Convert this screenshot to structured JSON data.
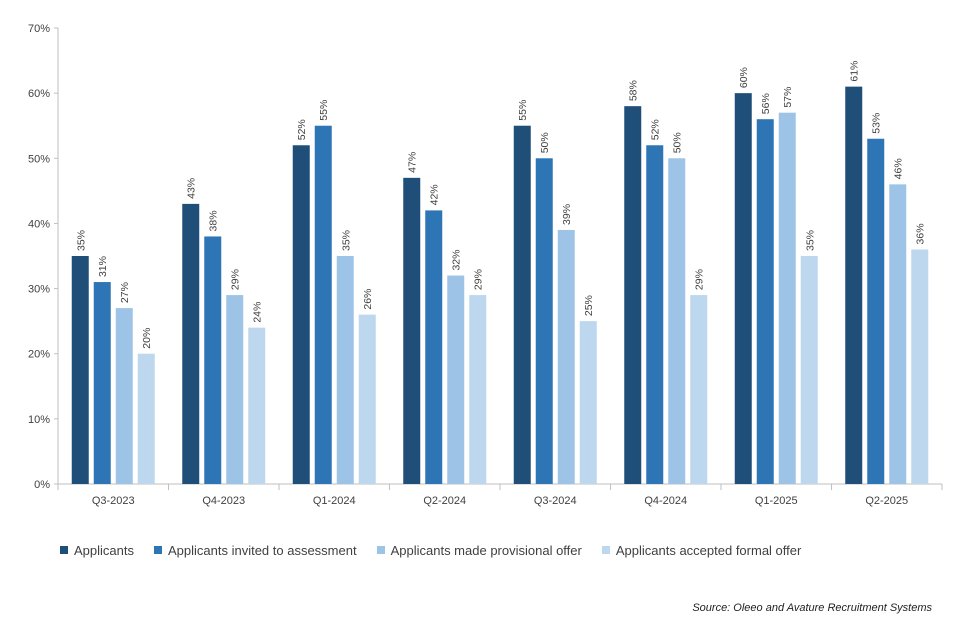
{
  "chart_data": {
    "type": "bar",
    "categories": [
      "Q3-2023",
      "Q4-2023",
      "Q1-2024",
      "Q2-2024",
      "Q3-2024",
      "Q4-2024",
      "Q1-2025",
      "Q2-2025"
    ],
    "series": [
      {
        "name": "Applicants",
        "color": "#1f4e79",
        "values": [
          35,
          43,
          52,
          47,
          55,
          58,
          60,
          61
        ]
      },
      {
        "name": "Applicants invited to assessment",
        "color": "#2e75b6",
        "values": [
          31,
          38,
          55,
          42,
          50,
          52,
          56,
          53
        ]
      },
      {
        "name": "Applicants made provisional offer",
        "color": "#9dc3e6",
        "values": [
          27,
          29,
          35,
          32,
          39,
          50,
          57,
          46
        ]
      },
      {
        "name": "Applicants accepted formal offer",
        "color": "#bdd7ee",
        "values": [
          20,
          24,
          26,
          29,
          25,
          29,
          35,
          36
        ]
      }
    ],
    "ylim": [
      0,
      70
    ],
    "yticks": [
      "0%",
      "10%",
      "20%",
      "30%",
      "40%",
      "50%",
      "60%",
      "70%"
    ],
    "value_suffix": "%",
    "legend_position": "bottom",
    "grid": false
  },
  "source_text": "Source: Oleeo and Avature Recruitment Systems"
}
